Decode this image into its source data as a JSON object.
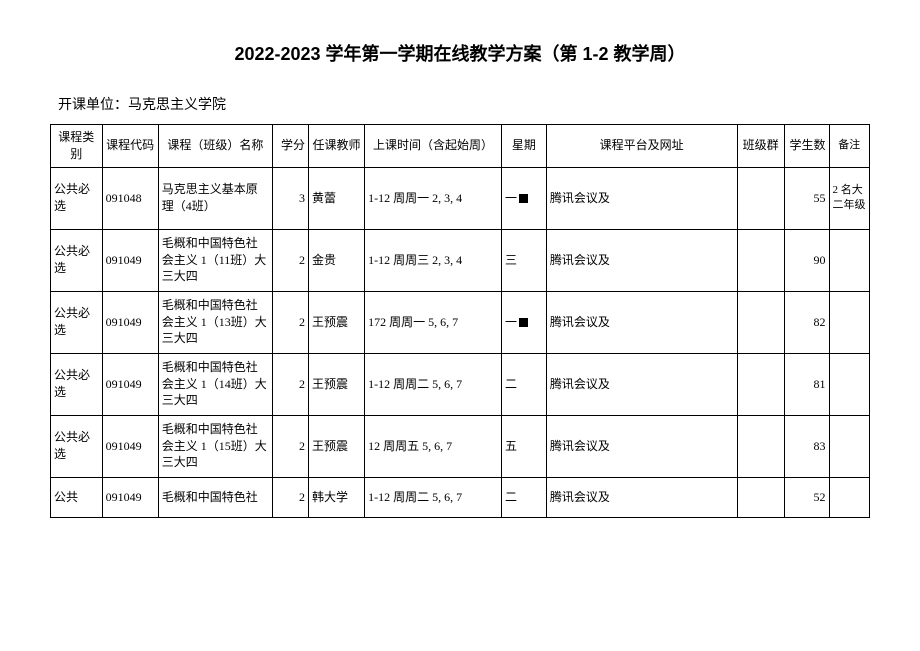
{
  "title": "2022-2023 学年第一学期在线教学方案（第 1-2 教学周）",
  "subtitle": "开课单位：马克思主义学院",
  "columns": [
    "课程类别",
    "课程代码",
    "课程（班级）名称",
    "学分",
    "任课教师",
    "上课时间（含起始周）",
    "星期",
    "课程平台及网址",
    "班级群",
    "学生数",
    "备注"
  ],
  "rows": [
    {
      "cat": "公共必选",
      "code": "091048",
      "name": "马克思主义基本原理（4班）",
      "credit": "3",
      "teacher": "黄蕾",
      "time": "1-12 周周一 2, 3, 4",
      "week_prefix": "一",
      "week_square": true,
      "platform": "腾讯会议及",
      "group": "",
      "students": "55",
      "note": "2 名大二年级"
    },
    {
      "cat": "公共必选",
      "code": "091049",
      "name": "毛概和中国特色社会主义 1（11班）大三大四",
      "credit": "2",
      "teacher": "金贵",
      "time": "1-12 周周三 2, 3, 4",
      "week_prefix": "三",
      "week_square": false,
      "platform": "腾讯会议及",
      "group": "",
      "students": "90",
      "note": ""
    },
    {
      "cat": "公共必选",
      "code": "091049",
      "name": "毛概和中国特色社会主义 1（13班）大三大四",
      "credit": "2",
      "teacher": "王预震",
      "time": "172 周周一 5, 6, 7",
      "week_prefix": "一",
      "week_square": true,
      "platform": "腾讯会议及",
      "group": "",
      "students": "82",
      "note": ""
    },
    {
      "cat": "公共必选",
      "code": "091049",
      "name": "毛概和中国特色社会主义 1（14班）大三大四",
      "credit": "2",
      "teacher": "王预震",
      "time": "1-12 周周二 5, 6, 7",
      "week_prefix": "二",
      "week_square": false,
      "platform": "腾讯会议及",
      "group": "",
      "students": "81",
      "note": ""
    },
    {
      "cat": "公共必选",
      "code": "091049",
      "name": "毛概和中国特色社会主义 1（15班）大三大四",
      "credit": "2",
      "teacher": "王预震",
      "time": "12 周周五 5, 6, 7",
      "week_prefix": "五",
      "week_square": false,
      "platform": "腾讯会议及",
      "group": "",
      "students": "83",
      "note": ""
    },
    {
      "cat": "公共",
      "code": "091049",
      "name": "毛概和中国特色社",
      "credit": "2",
      "teacher": "韩大学",
      "time": "1-12 周周二 5, 6, 7",
      "week_prefix": "二",
      "week_square": false,
      "platform": "腾讯会议及",
      "group": "",
      "students": "52",
      "note": "",
      "last": true
    }
  ]
}
